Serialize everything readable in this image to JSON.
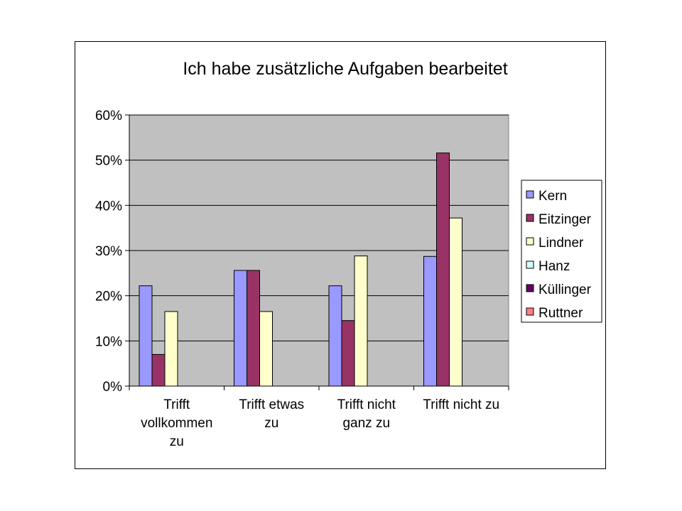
{
  "chart_data": {
    "type": "bar",
    "title": "Ich habe zusätzliche Aufgaben bearbeitet",
    "xlabel": "",
    "ylabel": "",
    "ylim": [
      0,
      60
    ],
    "yticks": [
      "0%",
      "10%",
      "20%",
      "30%",
      "40%",
      "50%",
      "60%"
    ],
    "grid": true,
    "legend_position": "right",
    "categories": [
      [
        "Trifft",
        "vollkommen",
        "zu"
      ],
      [
        "Trifft etwas",
        "zu"
      ],
      [
        "Trifft nicht",
        "ganz zu"
      ],
      [
        "Trifft nicht zu"
      ]
    ],
    "series": [
      {
        "name": "Kern",
        "color": "#9999ff",
        "values": [
          22.2,
          25.6,
          22.2,
          28.7
        ]
      },
      {
        "name": "Eitzinger",
        "color": "#993366",
        "values": [
          7.0,
          25.6,
          14.5,
          51.6
        ]
      },
      {
        "name": "Lindner",
        "color": "#ffffcc",
        "values": [
          16.5,
          16.5,
          28.8,
          37.2
        ]
      },
      {
        "name": "Hanz",
        "color": "#ccffff",
        "values": [
          0,
          0,
          0,
          0
        ]
      },
      {
        "name": "Küllinger",
        "color": "#660066",
        "values": [
          0,
          0,
          0,
          0
        ]
      },
      {
        "name": "Ruttner",
        "color": "#ff8080",
        "values": [
          0,
          0,
          0,
          0
        ]
      }
    ],
    "plot_background": "#c0c0c0"
  }
}
